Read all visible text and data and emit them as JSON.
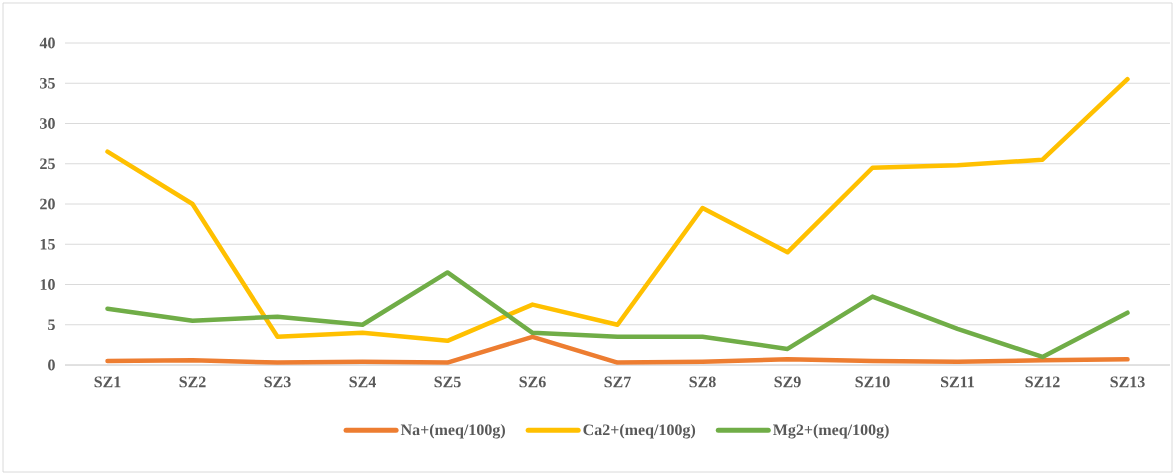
{
  "chart_data": {
    "type": "line",
    "categories": [
      "SZ1",
      "SZ2",
      "SZ3",
      "SZ4",
      "SZ5",
      "SZ6",
      "SZ7",
      "SZ8",
      "SZ9",
      "SZ10",
      "SZ11",
      "SZ12",
      "SZ13"
    ],
    "series": [
      {
        "name": "Na+(meq/100g)",
        "color": "#ed7d31",
        "values": [
          0.5,
          0.6,
          0.3,
          0.4,
          0.3,
          3.5,
          0.3,
          0.4,
          0.7,
          0.5,
          0.4,
          0.6,
          0.7
        ]
      },
      {
        "name": "Ca2+(meq/100g)",
        "color": "#ffc000",
        "values": [
          26.5,
          20,
          3.5,
          4,
          3,
          7.5,
          5,
          19.5,
          14,
          24.5,
          24.8,
          25.5,
          35.5
        ]
      },
      {
        "name": "Mg2+(meq/100g)",
        "color": "#70ad47",
        "values": [
          7,
          5.5,
          6,
          5,
          11.5,
          4,
          3.5,
          3.5,
          2,
          8.5,
          4.5,
          1,
          6.5
        ]
      }
    ],
    "ylim": [
      0,
      40
    ],
    "yticks": [
      0,
      5,
      10,
      15,
      20,
      25,
      30,
      35,
      40
    ],
    "grid": "y",
    "legend": "bottom",
    "marker": "none",
    "line_style": "solid"
  }
}
